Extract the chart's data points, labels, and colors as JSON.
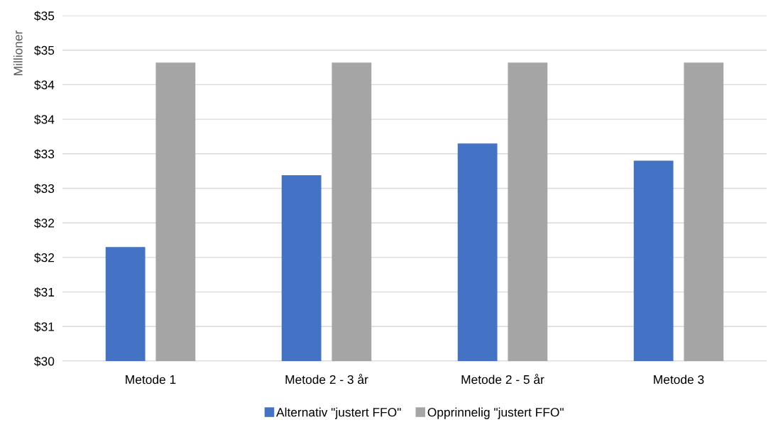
{
  "chart_data": {
    "type": "bar",
    "ylabel": "Millioner",
    "categories": [
      "Metode 1",
      "Metode 2 - 3 år",
      "Metode 2 - 5 år",
      "Metode 3"
    ],
    "series": [
      {
        "name": "Alternativ \"justert FFO\"",
        "color": "#4472c4",
        "values": [
          31.65,
          32.69,
          33.15,
          32.9
        ]
      },
      {
        "name": "Opprinnelig \"justert FFO\"",
        "color": "#a5a5a5",
        "values": [
          34.32,
          34.32,
          34.32,
          34.32
        ]
      }
    ],
    "ylim": [
      30,
      35
    ],
    "yticks": [
      {
        "value": 30,
        "label": "$30"
      },
      {
        "value": 30.5,
        "label": "$31"
      },
      {
        "value": 31,
        "label": "$31"
      },
      {
        "value": 31.5,
        "label": "$32"
      },
      {
        "value": 32,
        "label": "$32"
      },
      {
        "value": 32.5,
        "label": "$33"
      },
      {
        "value": 33,
        "label": "$33"
      },
      {
        "value": 33.5,
        "label": "$34"
      },
      {
        "value": 34,
        "label": "$34"
      },
      {
        "value": 34.5,
        "label": "$35"
      },
      {
        "value": 35,
        "label": "$35"
      }
    ],
    "grid": "y",
    "legend": "bottom"
  }
}
